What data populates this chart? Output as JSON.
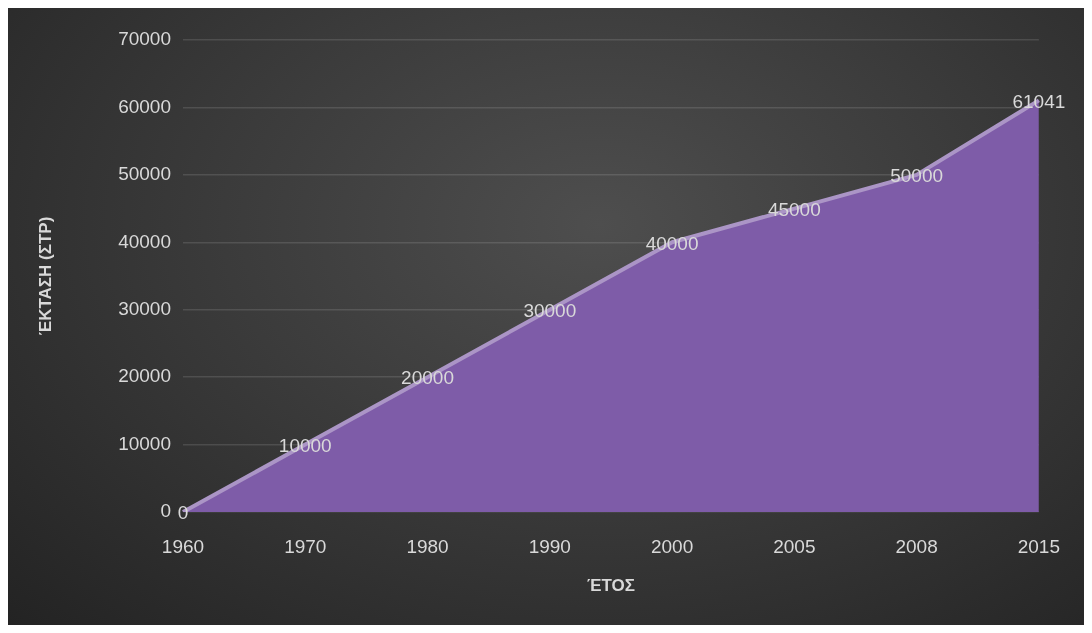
{
  "chart_data": {
    "type": "area",
    "xlabel": "ΈΤΟΣ",
    "ylabel": "ΈΚΤΑΣΗ (ΣΤΡ)",
    "categories": [
      "1960",
      "1970",
      "1980",
      "1990",
      "2000",
      "2005",
      "2008",
      "2015"
    ],
    "values": [
      0,
      10000,
      20000,
      30000,
      40000,
      45000,
      50000,
      61041
    ],
    "color": "#7e5ca8",
    "ylim": [
      0,
      70000
    ],
    "yticks": [
      0,
      10000,
      20000,
      30000,
      40000,
      50000,
      60000,
      70000
    ],
    "grid": "y",
    "data_labels": true
  }
}
